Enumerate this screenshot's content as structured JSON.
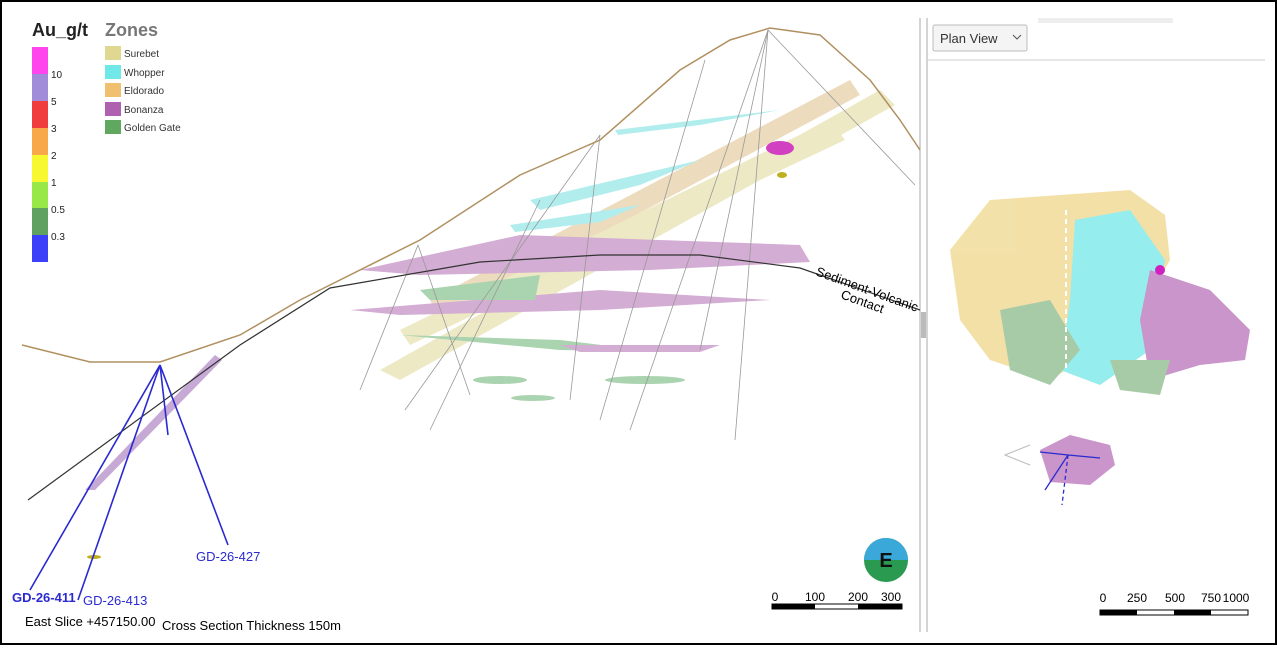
{
  "legend": {
    "title": "Au_g/t",
    "labels": [
      "10",
      "5",
      "3",
      "2",
      "1",
      "0.5",
      "0.3"
    ]
  },
  "zones": {
    "title": "Zones",
    "items": [
      "Surebet",
      "Whopper",
      "Eldorado",
      "Bonanza",
      "Golden Gate"
    ]
  },
  "annotation": {
    "line1": "Sediment-Volcanic",
    "line2": "Contact"
  },
  "drill_holes": [
    "GD-26-411",
    "GD-26-413",
    "GD-26-427"
  ],
  "footer": {
    "slice": "East Slice +457150.00",
    "thickness": "Cross Section Thickness 150m"
  },
  "compass": "E",
  "section_scale": [
    "0",
    "100",
    "200",
    "300"
  ],
  "plan_view": {
    "dropdown": "Plan View",
    "scale": [
      "0",
      "250",
      "500",
      "750",
      "1000"
    ]
  }
}
